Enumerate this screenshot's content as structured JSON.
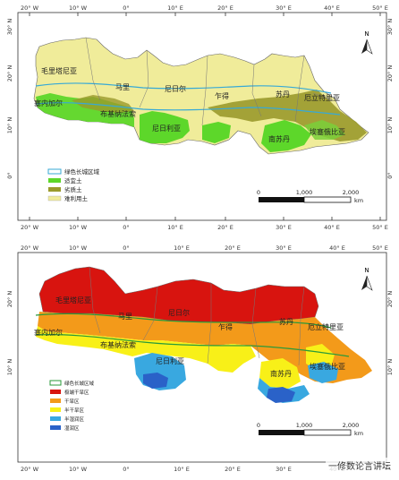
{
  "maps": [
    {
      "id": "top",
      "lon_ticks": [
        "20° W",
        "10° W",
        "0°",
        "10° E",
        "20° E",
        "30° E",
        "40° E",
        "50° E"
      ],
      "lat_ticks": [
        "30° N",
        "20° N",
        "10° N",
        "0°"
      ],
      "countries": [
        "毛里塔尼亚",
        "马里",
        "尼日尔",
        "乍得",
        "苏丹",
        "厄立特里亚",
        "塞内加尔",
        "布基纳法索",
        "尼日利亚",
        "南苏丹",
        "埃塞俄比亚"
      ],
      "legend": [
        {
          "label": "绿色长城区域",
          "color": "#ffffff",
          "border": "#37a9d6"
        },
        {
          "label": "适宜土",
          "color": "#5dd72a"
        },
        {
          "label": "劣质土",
          "color": "#9a9a2c"
        },
        {
          "label": "难利用土",
          "color": "#f0ec9a"
        }
      ],
      "scale_labels": [
        "0",
        "1,000",
        "2,000"
      ],
      "scale_unit": "km",
      "north": "N"
    },
    {
      "id": "bottom",
      "lon_ticks": [
        "20° W",
        "10° W",
        "0°",
        "10° E",
        "20° E",
        "30° E",
        "40° E",
        "50° E"
      ],
      "lat_ticks": [
        "20° N",
        "10° N"
      ],
      "countries": [
        "毛里塔尼亚",
        "马里",
        "尼日尔",
        "乍得",
        "苏丹",
        "厄立特里亚",
        "塞内加尔",
        "布基纳法索",
        "尼日利亚",
        "南苏丹",
        "埃塞俄比亚"
      ],
      "legend": [
        {
          "label": "绿色长城区域",
          "color": "#ffffff",
          "border": "#2a9a3a"
        },
        {
          "label": "极端干旱区",
          "color": "#d8140f"
        },
        {
          "label": "干旱区",
          "color": "#f39a1a"
        },
        {
          "label": "半干旱区",
          "color": "#f8f018"
        },
        {
          "label": "半湿润区",
          "color": "#39a8e0"
        },
        {
          "label": "湿润区",
          "color": "#2a62c8"
        }
      ],
      "scale_labels": [
        "0",
        "1,000",
        "2,000"
      ],
      "scale_unit": "km",
      "north": "N"
    }
  ],
  "watermark": "一修数论言讲坛"
}
